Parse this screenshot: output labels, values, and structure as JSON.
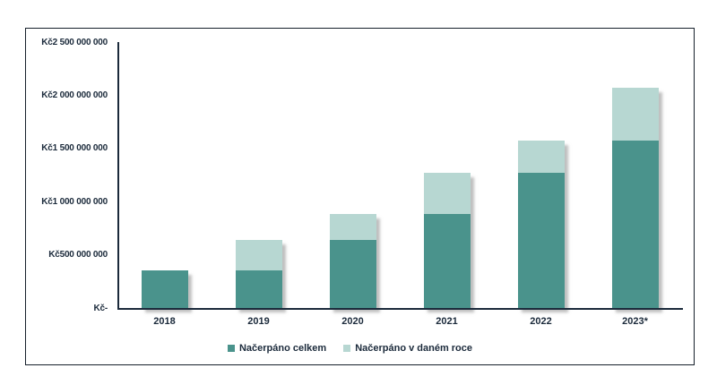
{
  "chart_data": {
    "type": "bar",
    "stacked": true,
    "title": "",
    "categories": [
      "2018",
      "2019",
      "2020",
      "2021",
      "2022",
      "2023*"
    ],
    "series": [
      {
        "name": "Načerpáno celkem",
        "color": "#4a938c",
        "values": [
          355000000,
          355000000,
          640000000,
          885000000,
          1275000000,
          1575000000
        ]
      },
      {
        "name": "Načerpáno v daném roce",
        "color": "#b7d7d2",
        "values": [
          0,
          285000000,
          245000000,
          390000000,
          300000000,
          495000000
        ]
      }
    ],
    "stack_totals": [
      355000000,
      640000000,
      885000000,
      1275000000,
      1575000000,
      2070000000
    ],
    "ylim": [
      0,
      2500000000
    ],
    "y_ticks": [
      {
        "value": 0,
        "label": "Kč-"
      },
      {
        "value": 500000000,
        "label": "Kč500 000 000"
      },
      {
        "value": 1000000000,
        "label": "Kč1 000 000 000"
      },
      {
        "value": 1500000000,
        "label": "Kč1 500 000 000"
      },
      {
        "value": 2000000000,
        "label": "Kč2 000 000 000"
      },
      {
        "value": 2500000000,
        "label": "Kč2 500 000 000"
      }
    ],
    "grid": false,
    "legend_position": "bottom",
    "currency": "Kč"
  },
  "colors": {
    "series_dark": "#4a938c",
    "series_light": "#b7d7d2",
    "axis": "#1b2a3b",
    "text": "#1b2a3b",
    "frame_border": "#16202b",
    "background": "#ffffff",
    "bar_shadow": "#828282"
  }
}
